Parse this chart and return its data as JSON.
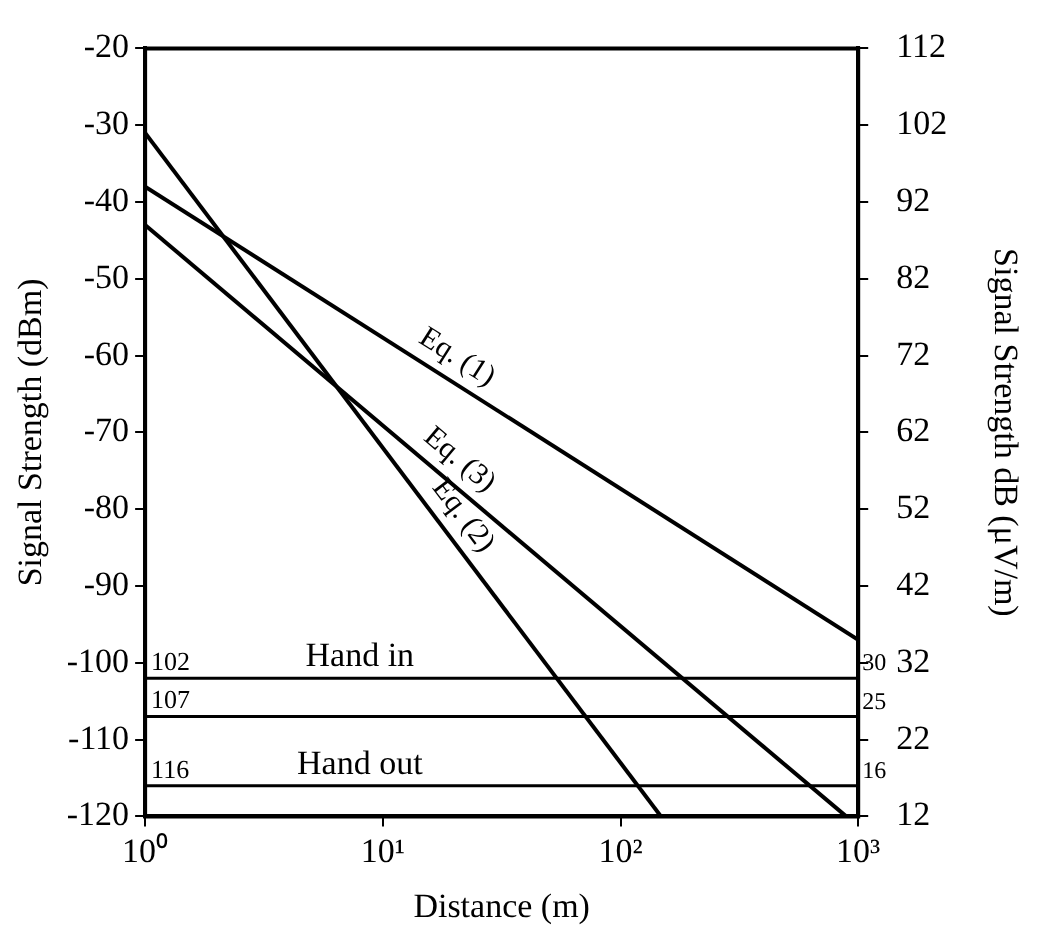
{
  "chart_data": {
    "type": "line",
    "xlabel": "Distance (m)",
    "ylabel": "Signal Strength (dBm)",
    "y2label": "Signal Strength dB (μV/m)",
    "log": "x",
    "grid": false,
    "legend": false,
    "marker": "none",
    "line_style": "solid",
    "xlim": [
      1,
      1000
    ],
    "xticks": [
      {
        "value": 1,
        "label": "10⁰"
      },
      {
        "value": 10,
        "label": "10¹"
      },
      {
        "value": 100,
        "label": "10²"
      },
      {
        "value": 1000,
        "label": "10³"
      }
    ],
    "ylim": [
      -120,
      -20
    ],
    "yticks": [
      -120,
      -110,
      -100,
      -90,
      -80,
      -70,
      -60,
      -50,
      -40,
      -30,
      -20
    ],
    "y2lim": [
      12,
      112
    ],
    "y2ticks": [
      12,
      22,
      32,
      42,
      52,
      62,
      72,
      82,
      92,
      102,
      112
    ],
    "series": [
      {
        "name": "Eq. (1)",
        "color": "#000000",
        "x": [
          1,
          1000
        ],
        "values": [
          -38,
          -97
        ]
      },
      {
        "name": "Eq. (3)",
        "color": "#000000",
        "x": [
          1,
          890
        ],
        "values": [
          -43,
          -120
        ]
      },
      {
        "name": "Eq. (2)",
        "color": "#000000",
        "x": [
          1,
          148
        ],
        "values": [
          -31,
          -120
        ]
      }
    ],
    "ref_lines": [
      {
        "axis": "y",
        "value": -102,
        "color": "#000000"
      },
      {
        "axis": "y",
        "value": -107,
        "color": "#000000"
      },
      {
        "axis": "y",
        "value": -116,
        "color": "#000000"
      }
    ],
    "annotations": [
      {
        "text": "102",
        "x": 1,
        "y": -102
      },
      {
        "text": "107",
        "x": 1,
        "y": -107
      },
      {
        "text": "116",
        "x": 1,
        "y": -116
      },
      {
        "text": "Hand in",
        "x": 8,
        "y": -102
      },
      {
        "text": "Hand out",
        "x": 8,
        "y": -116
      },
      {
        "text": "30",
        "x": 1000,
        "y": -102
      },
      {
        "text": "25",
        "x": 1000,
        "y": -107
      },
      {
        "text": "16",
        "x": 1000,
        "y": -116
      }
    ]
  }
}
